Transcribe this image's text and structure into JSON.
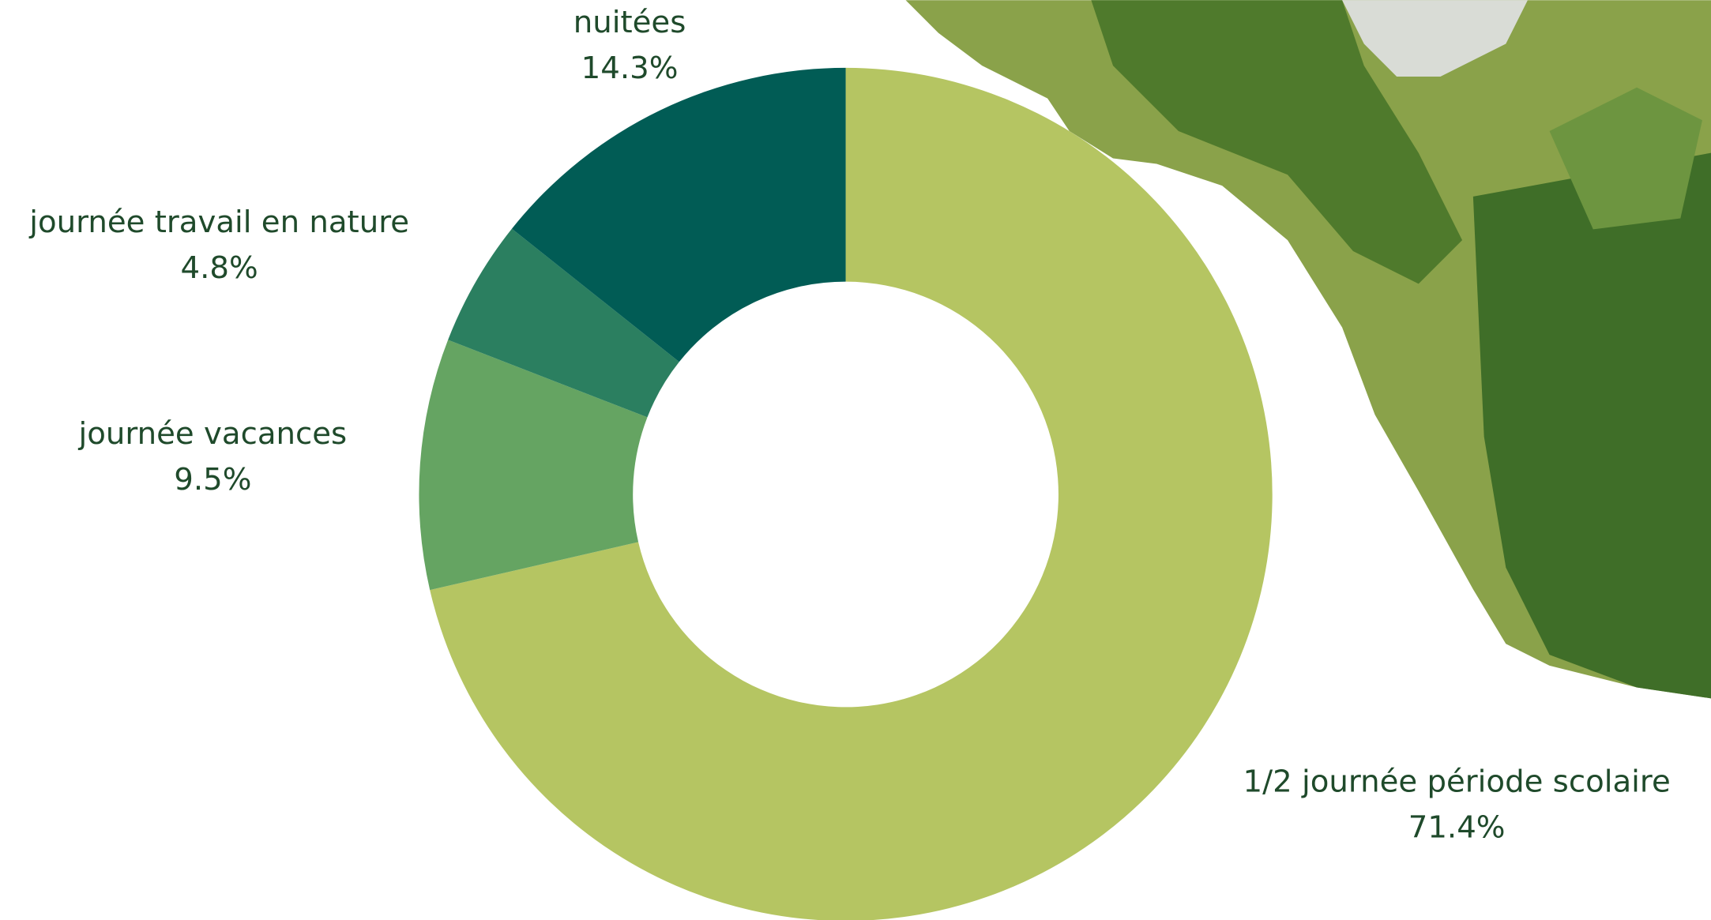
{
  "chart_data": {
    "type": "donut",
    "categories": [
      "1/2 journée période scolaire",
      "journée vacances",
      "journée travail en nature",
      "nuitées"
    ],
    "values": [
      71.4,
      9.5,
      4.8,
      14.3
    ],
    "value_labels": [
      "71.4%",
      "9.5%",
      "4.8%",
      "14.3%"
    ],
    "colors": [
      "#b5c562",
      "#65a462",
      "#2b7f60",
      "#015c55"
    ]
  }
}
